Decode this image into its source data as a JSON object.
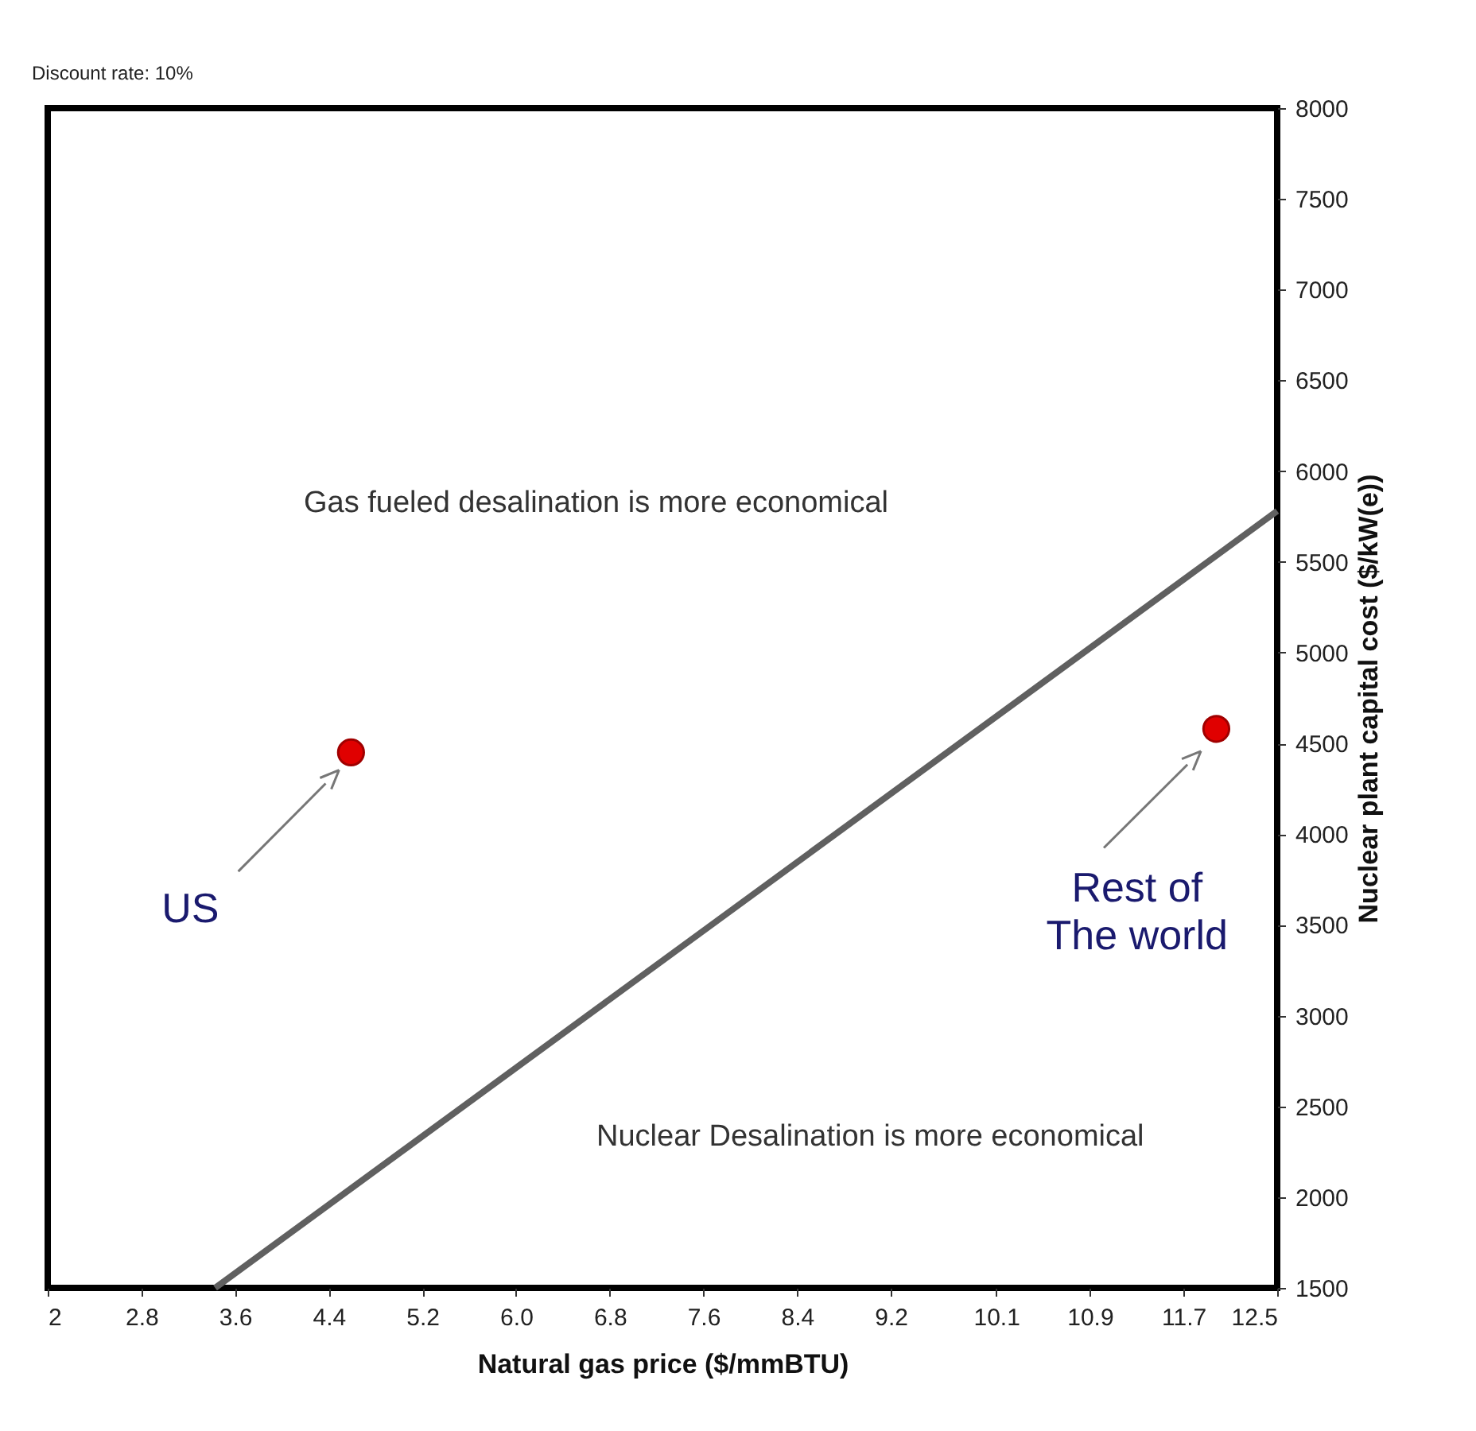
{
  "chart_data": {
    "type": "scatter",
    "xlabel": "Natural gas price ($/mmBTU)",
    "ylabel": "Nuclear plant capital cost ($/kW(e))",
    "xlim": [
      2,
      12.5
    ],
    "ylim": [
      1500,
      8000
    ],
    "xticks": [
      2,
      2.8,
      3.6,
      4.4,
      5.2,
      {
        "value": 6,
        "label": "6.0"
      },
      6.8,
      7.6,
      8.4,
      9.2,
      10.1,
      10.9,
      11.7,
      12.5
    ],
    "yticks": [
      1500,
      2000,
      2500,
      3000,
      3500,
      4000,
      4500,
      5000,
      5500,
      6000,
      6500,
      7000,
      7500,
      8000
    ],
    "series": [
      {
        "type": "line",
        "line_style": "solid",
        "color": "#606060",
        "x": [
          3.43,
          12.5
        ],
        "values": [
          1500,
          5780
        ]
      },
      {
        "color": "#e00000",
        "x": [
          4.59,
          11.98
        ],
        "values": [
          4450,
          4580
        ]
      }
    ],
    "annotations": [
      "Discount rate: 10%",
      "Gas fueled desalination is more economical",
      "Nuclear Desalination is more economical",
      "US",
      "Rest of The world"
    ]
  }
}
